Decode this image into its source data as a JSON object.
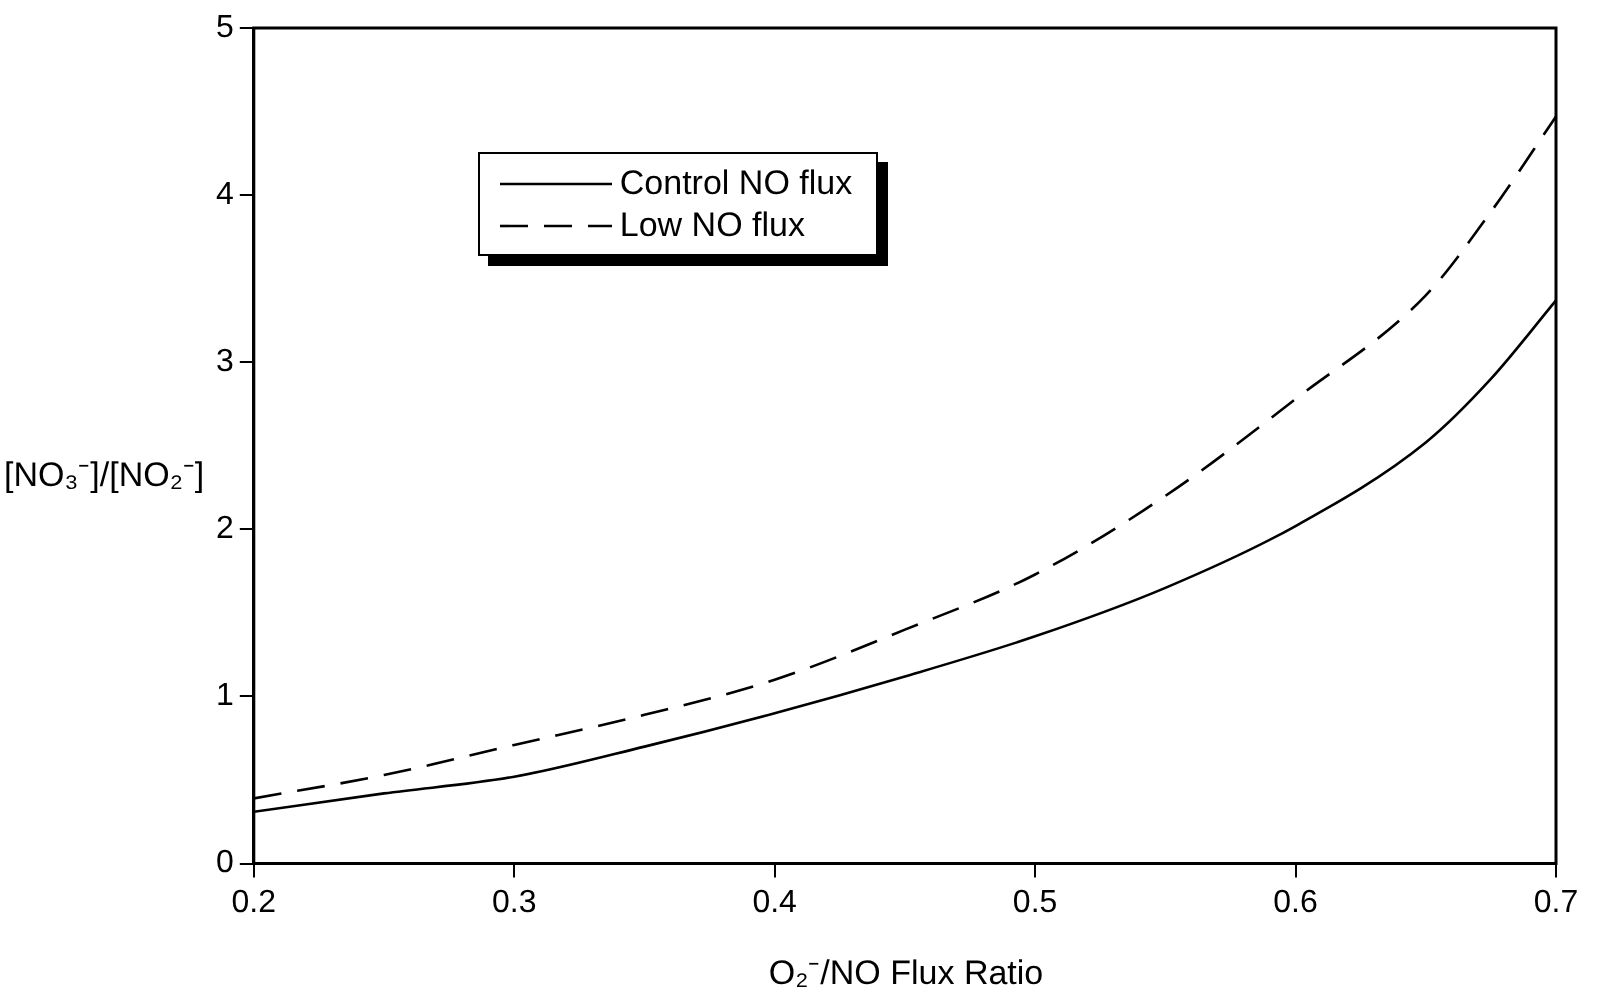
{
  "chart_data": {
    "type": "line",
    "xlabel": "O₂⁻/NO Flux Ratio",
    "ylabel": "[NO₃⁻]/[NO₂⁻]",
    "x": [
      0.2,
      0.25,
      0.3,
      0.35,
      0.4,
      0.45,
      0.5,
      0.55,
      0.6,
      0.65,
      0.675,
      0.7
    ],
    "series": [
      {
        "name": "Control NO flux",
        "color": "#000000",
        "line_style": "solid",
        "values": [
          0.31,
          0.42,
          0.52,
          0.7,
          0.9,
          1.12,
          1.36,
          1.65,
          2.02,
          2.52,
          2.9,
          3.37
        ]
      },
      {
        "name": "Low NO flux",
        "color": "#000000",
        "line_style": "dashed",
        "values": [
          0.39,
          0.53,
          0.71,
          0.89,
          1.1,
          1.4,
          1.73,
          2.2,
          2.78,
          3.4,
          3.9,
          4.47
        ]
      }
    ],
    "xlim": [
      0.2,
      0.7
    ],
    "xticks": [
      0.2,
      0.3,
      0.4,
      0.5,
      0.6,
      0.7
    ],
    "ylim": [
      0,
      5
    ],
    "yticks": [
      0,
      1,
      2,
      3,
      4,
      5
    ],
    "grid": false,
    "legend": "top left",
    "marker": "none"
  }
}
